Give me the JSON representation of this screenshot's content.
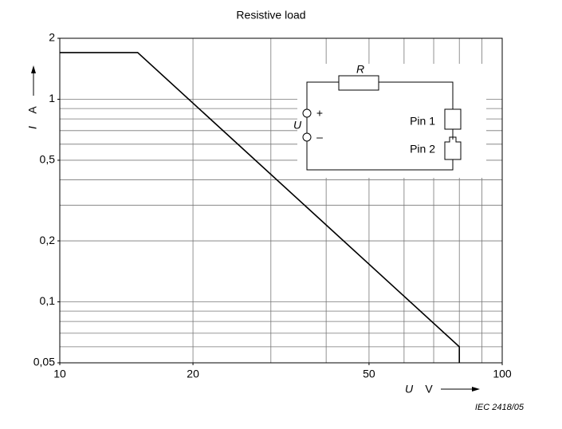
{
  "chart_data": {
    "type": "line",
    "title": "Resistive load",
    "x_label": {
      "symbol": "U",
      "unit": "V"
    },
    "y_label": {
      "symbol": "I",
      "unit": "A"
    },
    "x_scale": "log",
    "y_scale": "log",
    "xlim": [
      10,
      100
    ],
    "ylim": [
      0.05,
      2
    ],
    "xticks": [
      10,
      20,
      50,
      100
    ],
    "yticks": [
      {
        "value": 0.05,
        "label": "0,05"
      },
      {
        "value": 0.1,
        "label": "0,1"
      },
      {
        "value": 0.2,
        "label": "0,2"
      },
      {
        "value": 0.5,
        "label": "0,5"
      },
      1,
      2
    ],
    "x_grid": [
      20,
      30,
      40,
      50,
      60,
      70,
      80,
      90
    ],
    "y_grid": [
      0.06,
      0.07,
      0.08,
      0.09,
      0.1,
      0.2,
      0.3,
      0.4,
      0.5,
      0.6,
      0.7,
      0.8,
      0.9,
      1
    ],
    "series": [
      {
        "color": "#000000",
        "x": [
          10,
          15,
          80,
          80
        ],
        "values": [
          1.7,
          1.7,
          0.06,
          0.05
        ]
      }
    ],
    "inset": {
      "resistor": "R",
      "source": "U",
      "plus": "+",
      "minus": "–",
      "pin1": "Pin 1",
      "pin2": "Pin 2"
    }
  },
  "footer": "IEC   2418/05"
}
